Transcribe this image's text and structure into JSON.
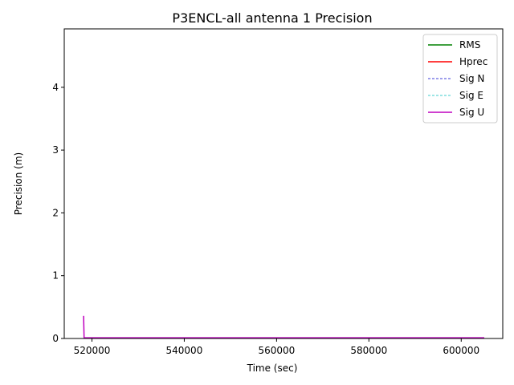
{
  "chart_data": {
    "type": "line",
    "title": "P3ENCL-all antenna 1 Precision",
    "xlabel": "Time (sec)",
    "ylabel": "Precision (m)",
    "xlim": [
      514000,
      609000
    ],
    "ylim": [
      0,
      4.93
    ],
    "xticks": [
      520000,
      540000,
      560000,
      580000,
      600000
    ],
    "xtick_labels": [
      "520000",
      "540000",
      "560000",
      "580000",
      "600000"
    ],
    "yticks": [
      0,
      1,
      2,
      3,
      4
    ],
    "ytick_labels": [
      "0",
      "1",
      "2",
      "3",
      "4"
    ],
    "grid": false,
    "legend_position": "top-right",
    "series": [
      {
        "name": "RMS",
        "color": "#008000",
        "style": "solid",
        "x": [
          518200,
          518300,
          605000
        ],
        "y": [
          0.01,
          0.01,
          0.01
        ]
      },
      {
        "name": "Hprec",
        "color": "#ff0000",
        "style": "solid",
        "x": [
          518200,
          518300,
          605000
        ],
        "y": [
          0.01,
          0.01,
          0.01
        ]
      },
      {
        "name": "Sig N",
        "color": "#0000cc",
        "style": "dashed",
        "x": [
          518200,
          518300,
          605000
        ],
        "y": [
          0.005,
          0.005,
          0.005
        ]
      },
      {
        "name": "Sig E",
        "color": "#00bfbf",
        "style": "dashed",
        "x": [
          518200,
          518300,
          605000
        ],
        "y": [
          0.005,
          0.005,
          0.005
        ]
      },
      {
        "name": "Sig U",
        "color": "#bf00bf",
        "style": "solid",
        "x": [
          518200,
          518300,
          605000
        ],
        "y": [
          0.36,
          0.012,
          0.012
        ]
      }
    ]
  }
}
